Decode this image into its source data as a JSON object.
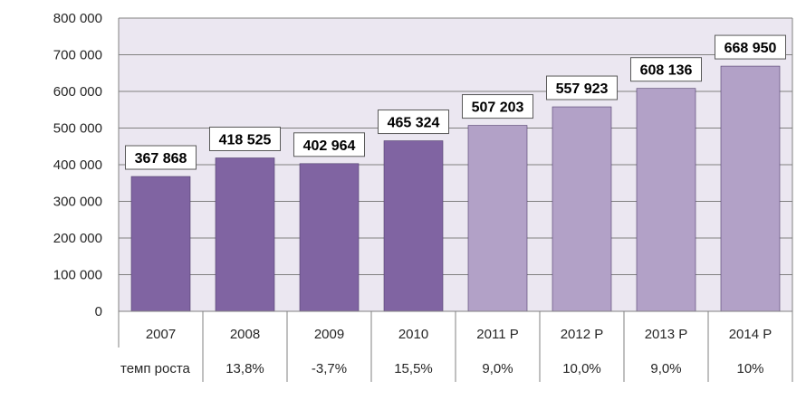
{
  "chart_data": {
    "type": "bar",
    "title": "",
    "xlabel": "",
    "ylabel": "",
    "categories": [
      "2007",
      "2008",
      "2009",
      "2010",
      "2011 Р",
      "2012 Р",
      "2013 Р",
      "2014 Р"
    ],
    "values": [
      367868,
      418525,
      402964,
      465324,
      507203,
      557923,
      608136,
      668950
    ],
    "value_labels": [
      "367 868",
      "418 525",
      "402 964",
      "465 324",
      "507 203",
      "557 923",
      "608 136",
      "668 950"
    ],
    "forecast": [
      false,
      false,
      false,
      false,
      true,
      true,
      true,
      true
    ],
    "ylim": [
      0,
      800000
    ],
    "yticks": [
      0,
      100000,
      200000,
      300000,
      400000,
      500000,
      600000,
      700000,
      800000
    ],
    "ytick_labels": [
      "0",
      "100 000",
      "200 000",
      "300 000",
      "400 000",
      "500 000",
      "600 000",
      "700 000",
      "800 000"
    ],
    "grid": true,
    "table": {
      "row_label": "темп роста",
      "values": [
        "",
        "13,8%",
        "-3,7%",
        "15,5%",
        "9,0%",
        "10,0%",
        "9,0%",
        "10%"
      ]
    }
  },
  "colors": {
    "actual": "#8064a2",
    "forecast": "#b2a1c7",
    "plot_bg": "#ebe7f1",
    "grid": "#808080"
  }
}
